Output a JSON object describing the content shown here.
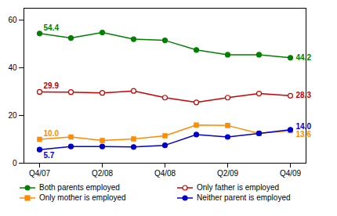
{
  "chart_data": {
    "type": "line",
    "categories": [
      "Q4/07",
      null,
      "Q2/08",
      null,
      "Q4/08",
      null,
      "Q2/09",
      null,
      "Q4/09"
    ],
    "series": [
      {
        "name": "Both parents employed",
        "color": "#008000",
        "marker": "circle",
        "values": [
          54.4,
          52.5,
          54.8,
          52.0,
          51.5,
          47.5,
          45.5,
          45.5,
          44.2
        ]
      },
      {
        "name": "Only father is employed",
        "color": "#cc0000",
        "marker": "open_circle",
        "values": [
          29.9,
          29.8,
          29.5,
          30.3,
          27.5,
          25.5,
          27.5,
          29.2,
          28.3
        ]
      },
      {
        "name": "Only mother is employed",
        "color": "#ff8c00",
        "marker": "square",
        "values": [
          10.0,
          11.0,
          9.5,
          10.2,
          11.5,
          16.0,
          15.8,
          12.5,
          13.6
        ]
      },
      {
        "name": "Neither parent is employed",
        "color": "#0000cc",
        "marker": "circle",
        "values": [
          5.7,
          7.0,
          7.0,
          6.8,
          7.5,
          12.0,
          11.0,
          12.5,
          14.0
        ]
      }
    ],
    "ylim": [
      0,
      65
    ],
    "yticks": [
      0,
      20,
      40,
      60
    ],
    "grid": false,
    "legend": "bottom",
    "annotations": [
      {
        "text": "54.4",
        "series": "Both parents employed",
        "x": "Q4/07"
      },
      {
        "text": "29.9",
        "series": "Only father is employed",
        "x": "Q4/07"
      },
      {
        "text": "10.0",
        "series": "Only mother is employed",
        "x": "Q4/07"
      },
      {
        "text": "5.7",
        "series": "Neither parent is employed",
        "x": "Q4/07"
      },
      {
        "text": "44.2",
        "series": "Both parents employed",
        "x": "Q4/09"
      },
      {
        "text": "28.3",
        "series": "Only father is employed",
        "x": "Q4/09"
      },
      {
        "text": "14.0",
        "series": "Neither parent is employed",
        "x": "Q4/09"
      },
      {
        "text": "13.6",
        "series": "Only mother is employed",
        "x": "Q4/09"
      }
    ]
  }
}
